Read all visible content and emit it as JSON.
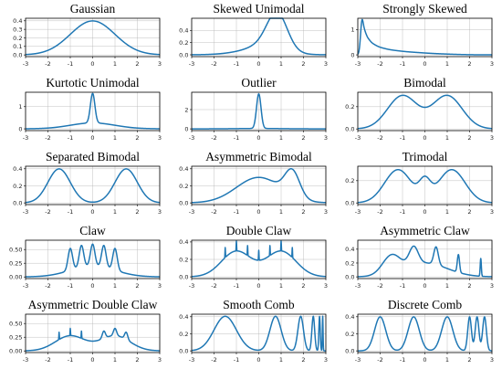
{
  "chart_data": [
    {
      "type": "line",
      "title": "Gaussian",
      "xlabel": "",
      "ylabel": "",
      "xlim": [
        -3,
        3
      ],
      "ylim": [
        -0.02,
        0.43
      ],
      "xticks": [
        "-3",
        "-2",
        "-1",
        "0",
        "1",
        "2",
        "3"
      ],
      "yticks": [
        "0.0",
        "0.1",
        "0.2",
        "0.3",
        "0.4"
      ],
      "grid": true,
      "series": [
        {
          "color": "#1f77b4",
          "components": [
            {
              "w": 1,
              "mu": 0,
              "sigma": 1
            }
          ]
        }
      ]
    },
    {
      "type": "line",
      "title": "Skewed Unimodal",
      "xlabel": "",
      "ylabel": "",
      "xlim": [
        -3,
        3
      ],
      "ylim": [
        -0.03,
        0.6
      ],
      "xticks": [
        "-3",
        "-2",
        "-1",
        "0",
        "1",
        "2",
        "3"
      ],
      "yticks": [
        "0.0",
        "0.2",
        "0.4"
      ],
      "grid": true,
      "series": [
        {
          "color": "#1f77b4",
          "components": [
            {
              "w": 0.2,
              "mu": 0,
              "sigma": 1
            },
            {
              "w": 0.2,
              "mu": 0.5,
              "sigma": 0.6667
            },
            {
              "w": 0.6,
              "mu": 0.8333,
              "sigma": 0.4444
            }
          ]
        }
      ]
    },
    {
      "type": "line",
      "title": "Strongly Skewed",
      "xlabel": "",
      "ylabel": "",
      "xlim": [
        -3,
        3
      ],
      "ylim": [
        -0.07,
        1.45
      ],
      "xticks": [
        "-3",
        "-2",
        "-1",
        "0",
        "1",
        "2",
        "3"
      ],
      "yticks": [
        "0",
        "1"
      ],
      "grid": true,
      "series": [
        {
          "color": "#1f77b4",
          "components": [
            {
              "w": 0.125,
              "mu": 0,
              "sigma": 1
            },
            {
              "w": 0.125,
              "mu": -1,
              "sigma": 0.6667
            },
            {
              "w": 0.125,
              "mu": -1.6667,
              "sigma": 0.4444
            },
            {
              "w": 0.125,
              "mu": -2.1111,
              "sigma": 0.2963
            },
            {
              "w": 0.125,
              "mu": -2.4074,
              "sigma": 0.1975
            },
            {
              "w": 0.125,
              "mu": -2.6049,
              "sigma": 0.1317
            },
            {
              "w": 0.125,
              "mu": -2.7366,
              "sigma": 0.0878
            },
            {
              "w": 0.125,
              "mu": -2.8244,
              "sigma": 0.0585
            }
          ]
        }
      ]
    },
    {
      "type": "line",
      "title": "Kurtotic Unimodal",
      "xlabel": "",
      "ylabel": "",
      "xlim": [
        -3,
        3
      ],
      "ylim": [
        -0.08,
        1.65
      ],
      "xticks": [
        "-3",
        "-2",
        "-1",
        "0",
        "1",
        "2",
        "3"
      ],
      "yticks": [
        "0",
        "1"
      ],
      "grid": true,
      "series": [
        {
          "color": "#1f77b4",
          "components": [
            {
              "w": 0.6667,
              "mu": 0,
              "sigma": 1
            },
            {
              "w": 0.3333,
              "mu": 0,
              "sigma": 0.1
            }
          ]
        }
      ]
    },
    {
      "type": "line",
      "title": "Outlier",
      "xlabel": "",
      "ylabel": "",
      "xlim": [
        -3,
        3
      ],
      "ylim": [
        -0.18,
        3.8
      ],
      "xticks": [
        "-3",
        "-2",
        "-1",
        "0",
        "1",
        "2",
        "3"
      ],
      "yticks": [
        "0",
        "2"
      ],
      "grid": true,
      "series": [
        {
          "color": "#1f77b4",
          "components": [
            {
              "w": 0.1,
              "mu": 0,
              "sigma": 1
            },
            {
              "w": 0.9,
              "mu": 0,
              "sigma": 0.1
            }
          ]
        }
      ]
    },
    {
      "type": "line",
      "title": "Bimodal",
      "xlabel": "",
      "ylabel": "",
      "xlim": [
        -3,
        3
      ],
      "ylim": [
        -0.015,
        0.33
      ],
      "xticks": [
        "-3",
        "-2",
        "-1",
        "0",
        "1",
        "2",
        "3"
      ],
      "yticks": [
        "0.0",
        "0.2"
      ],
      "grid": true,
      "series": [
        {
          "color": "#1f77b4",
          "components": [
            {
              "w": 0.5,
              "mu": -1,
              "sigma": 0.6667
            },
            {
              "w": 0.5,
              "mu": 1,
              "sigma": 0.6667
            }
          ]
        }
      ]
    },
    {
      "type": "line",
      "title": "Separated Bimodal",
      "xlabel": "",
      "ylabel": "",
      "xlim": [
        -3,
        3
      ],
      "ylim": [
        -0.02,
        0.43
      ],
      "xticks": [
        "-3",
        "-2",
        "-1",
        "0",
        "1",
        "2",
        "3"
      ],
      "yticks": [
        "0.0",
        "0.2",
        "0.4"
      ],
      "grid": true,
      "series": [
        {
          "color": "#1f77b4",
          "components": [
            {
              "w": 0.5,
              "mu": -1.5,
              "sigma": 0.5
            },
            {
              "w": 0.5,
              "mu": 1.5,
              "sigma": 0.5
            }
          ]
        }
      ]
    },
    {
      "type": "line",
      "title": "Asymmetric Bimodal",
      "xlabel": "",
      "ylabel": "",
      "xlim": [
        -3,
        3
      ],
      "ylim": [
        -0.02,
        0.43
      ],
      "xticks": [
        "-3",
        "-2",
        "-1",
        "0",
        "1",
        "2",
        "3"
      ],
      "yticks": [
        "0.0",
        "0.2",
        "0.4"
      ],
      "grid": true,
      "series": [
        {
          "color": "#1f77b4",
          "components": [
            {
              "w": 0.75,
              "mu": 0,
              "sigma": 1
            },
            {
              "w": 0.25,
              "mu": 1.5,
              "sigma": 0.3333
            }
          ]
        }
      ]
    },
    {
      "type": "line",
      "title": "Trimodal",
      "xlabel": "",
      "ylabel": "",
      "xlim": [
        -3,
        3
      ],
      "ylim": [
        -0.015,
        0.33
      ],
      "xticks": [
        "-3",
        "-2",
        "-1",
        "0",
        "1",
        "2",
        "3"
      ],
      "yticks": [
        "0.0",
        "0.2"
      ],
      "grid": true,
      "series": [
        {
          "color": "#1f77b4",
          "components": [
            {
              "w": 0.45,
              "mu": -1.2,
              "sigma": 0.6
            },
            {
              "w": 0.45,
              "mu": 1.2,
              "sigma": 0.6
            },
            {
              "w": 0.1,
              "mu": 0,
              "sigma": 0.25
            }
          ]
        }
      ]
    },
    {
      "type": "line",
      "title": "Claw",
      "xlabel": "",
      "ylabel": "",
      "xlim": [
        -3,
        3
      ],
      "ylim": [
        -0.03,
        0.67
      ],
      "xticks": [
        "-3",
        "-2",
        "-1",
        "0",
        "1",
        "2",
        "3"
      ],
      "yticks": [
        "0.00",
        "0.25",
        "0.50"
      ],
      "grid": true,
      "series": [
        {
          "color": "#1f77b4",
          "components": [
            {
              "w": 0.5,
              "mu": 0,
              "sigma": 1
            },
            {
              "w": 0.1,
              "mu": -1,
              "sigma": 0.1
            },
            {
              "w": 0.1,
              "mu": -0.5,
              "sigma": 0.1
            },
            {
              "w": 0.1,
              "mu": 0,
              "sigma": 0.1
            },
            {
              "w": 0.1,
              "mu": 0.5,
              "sigma": 0.1
            },
            {
              "w": 0.1,
              "mu": 1,
              "sigma": 0.1
            }
          ]
        }
      ]
    },
    {
      "type": "line",
      "title": "Double Claw",
      "xlabel": "",
      "ylabel": "",
      "xlim": [
        -3,
        3
      ],
      "ylim": [
        -0.02,
        0.42
      ],
      "xticks": [
        "-3",
        "-2",
        "-1",
        "0",
        "1",
        "2",
        "3"
      ],
      "yticks": [
        "0.0",
        "0.2",
        "0.4"
      ],
      "grid": true,
      "series": [
        {
          "color": "#1f77b4",
          "components": [
            {
              "w": 0.49,
              "mu": -1,
              "sigma": 0.6667
            },
            {
              "w": 0.49,
              "mu": 1,
              "sigma": 0.6667
            },
            {
              "w": 0.00286,
              "mu": -1.5,
              "sigma": 0.01
            },
            {
              "w": 0.00286,
              "mu": -1,
              "sigma": 0.01
            },
            {
              "w": 0.00286,
              "mu": -0.5,
              "sigma": 0.01
            },
            {
              "w": 0.00286,
              "mu": 0,
              "sigma": 0.01
            },
            {
              "w": 0.00286,
              "mu": 0.5,
              "sigma": 0.01
            },
            {
              "w": 0.00286,
              "mu": 1,
              "sigma": 0.01
            },
            {
              "w": 0.00286,
              "mu": 1.5,
              "sigma": 0.01
            }
          ]
        }
      ]
    },
    {
      "type": "line",
      "title": "Asymmetric Claw",
      "xlabel": "",
      "ylabel": "",
      "xlim": [
        -3,
        3
      ],
      "ylim": [
        -0.025,
        0.53
      ],
      "xticks": [
        "-3",
        "-2",
        "-1",
        "0",
        "1",
        "2",
        "3"
      ],
      "yticks": [
        "0.0",
        "0.2",
        "0.4"
      ],
      "grid": true,
      "series": [
        {
          "color": "#1f77b4",
          "components": [
            {
              "w": 0.5,
              "mu": 0,
              "sigma": 1
            },
            {
              "w": 0.2581,
              "mu": -1.5,
              "sigma": 0.4
            },
            {
              "w": 0.129,
              "mu": -0.5,
              "sigma": 0.2
            },
            {
              "w": 0.0645,
              "mu": 0.5,
              "sigma": 0.1
            },
            {
              "w": 0.0323,
              "mu": 1.5,
              "sigma": 0.05
            },
            {
              "w": 0.0161,
              "mu": 2.5,
              "sigma": 0.025
            }
          ]
        }
      ]
    },
    {
      "type": "line",
      "title": "Asymmetric Double Claw",
      "xlabel": "",
      "ylabel": "",
      "xlim": [
        -3,
        3
      ],
      "ylim": [
        -0.03,
        0.67
      ],
      "xticks": [
        "-3",
        "-2",
        "-1",
        "0",
        "1",
        "2",
        "3"
      ],
      "yticks": [
        "0.00",
        "0.25",
        "0.50"
      ],
      "grid": true,
      "series": [
        {
          "color": "#1f77b4",
          "components": [
            {
              "w": 0.46,
              "mu": -1,
              "sigma": 0.6667
            },
            {
              "w": 0.46,
              "mu": 1,
              "sigma": 0.6667
            },
            {
              "w": 0.00333,
              "mu": -1.5,
              "sigma": 0.01
            },
            {
              "w": 0.00333,
              "mu": -1,
              "sigma": 0.01
            },
            {
              "w": 0.00333,
              "mu": -0.5,
              "sigma": 0.01
            },
            {
              "w": 0.0233,
              "mu": 0.5,
              "sigma": 0.07
            },
            {
              "w": 0.0233,
              "mu": 1,
              "sigma": 0.07
            },
            {
              "w": 0.0233,
              "mu": 1.5,
              "sigma": 0.07
            }
          ]
        }
      ]
    },
    {
      "type": "line",
      "title": "Smooth Comb",
      "xlabel": "",
      "ylabel": "",
      "xlim": [
        -3,
        3
      ],
      "ylim": [
        -0.02,
        0.43
      ],
      "xticks": [
        "-3",
        "-2",
        "-1",
        "0",
        "1",
        "2",
        "3"
      ],
      "yticks": [
        "0.0",
        "0.2",
        "0.4"
      ],
      "grid": true,
      "series": [
        {
          "color": "#1f77b4",
          "components": [
            {
              "w": 0.5079,
              "mu": -1.5,
              "sigma": 0.5
            },
            {
              "w": 0.254,
              "mu": 0.75,
              "sigma": 0.25
            },
            {
              "w": 0.127,
              "mu": 1.875,
              "sigma": 0.125
            },
            {
              "w": 0.0635,
              "mu": 2.4375,
              "sigma": 0.0625
            },
            {
              "w": 0.0317,
              "mu": 2.7188,
              "sigma": 0.0313
            },
            {
              "w": 0.0159,
              "mu": 2.8594,
              "sigma": 0.0156
            }
          ]
        }
      ]
    },
    {
      "type": "line",
      "title": "Discrete Comb",
      "xlabel": "",
      "ylabel": "",
      "xlim": [
        -3,
        3
      ],
      "ylim": [
        -0.02,
        0.43
      ],
      "xticks": [
        "-3",
        "-2",
        "-1",
        "0",
        "1",
        "2",
        "3"
      ],
      "yticks": [
        "0.0",
        "0.2",
        "0.4"
      ],
      "grid": true,
      "series": [
        {
          "color": "#1f77b4",
          "components": [
            {
              "w": 0.25,
              "mu": -2,
              "sigma": 0.25
            },
            {
              "w": 0.25,
              "mu": -0.5,
              "sigma": 0.25
            },
            {
              "w": 0.25,
              "mu": 1,
              "sigma": 0.25
            },
            {
              "w": 0.0833,
              "mu": 2,
              "sigma": 0.0833
            },
            {
              "w": 0.0833,
              "mu": 2.3333,
              "sigma": 0.0833
            },
            {
              "w": 0.0833,
              "mu": 2.6667,
              "sigma": 0.0833
            }
          ]
        }
      ]
    }
  ]
}
